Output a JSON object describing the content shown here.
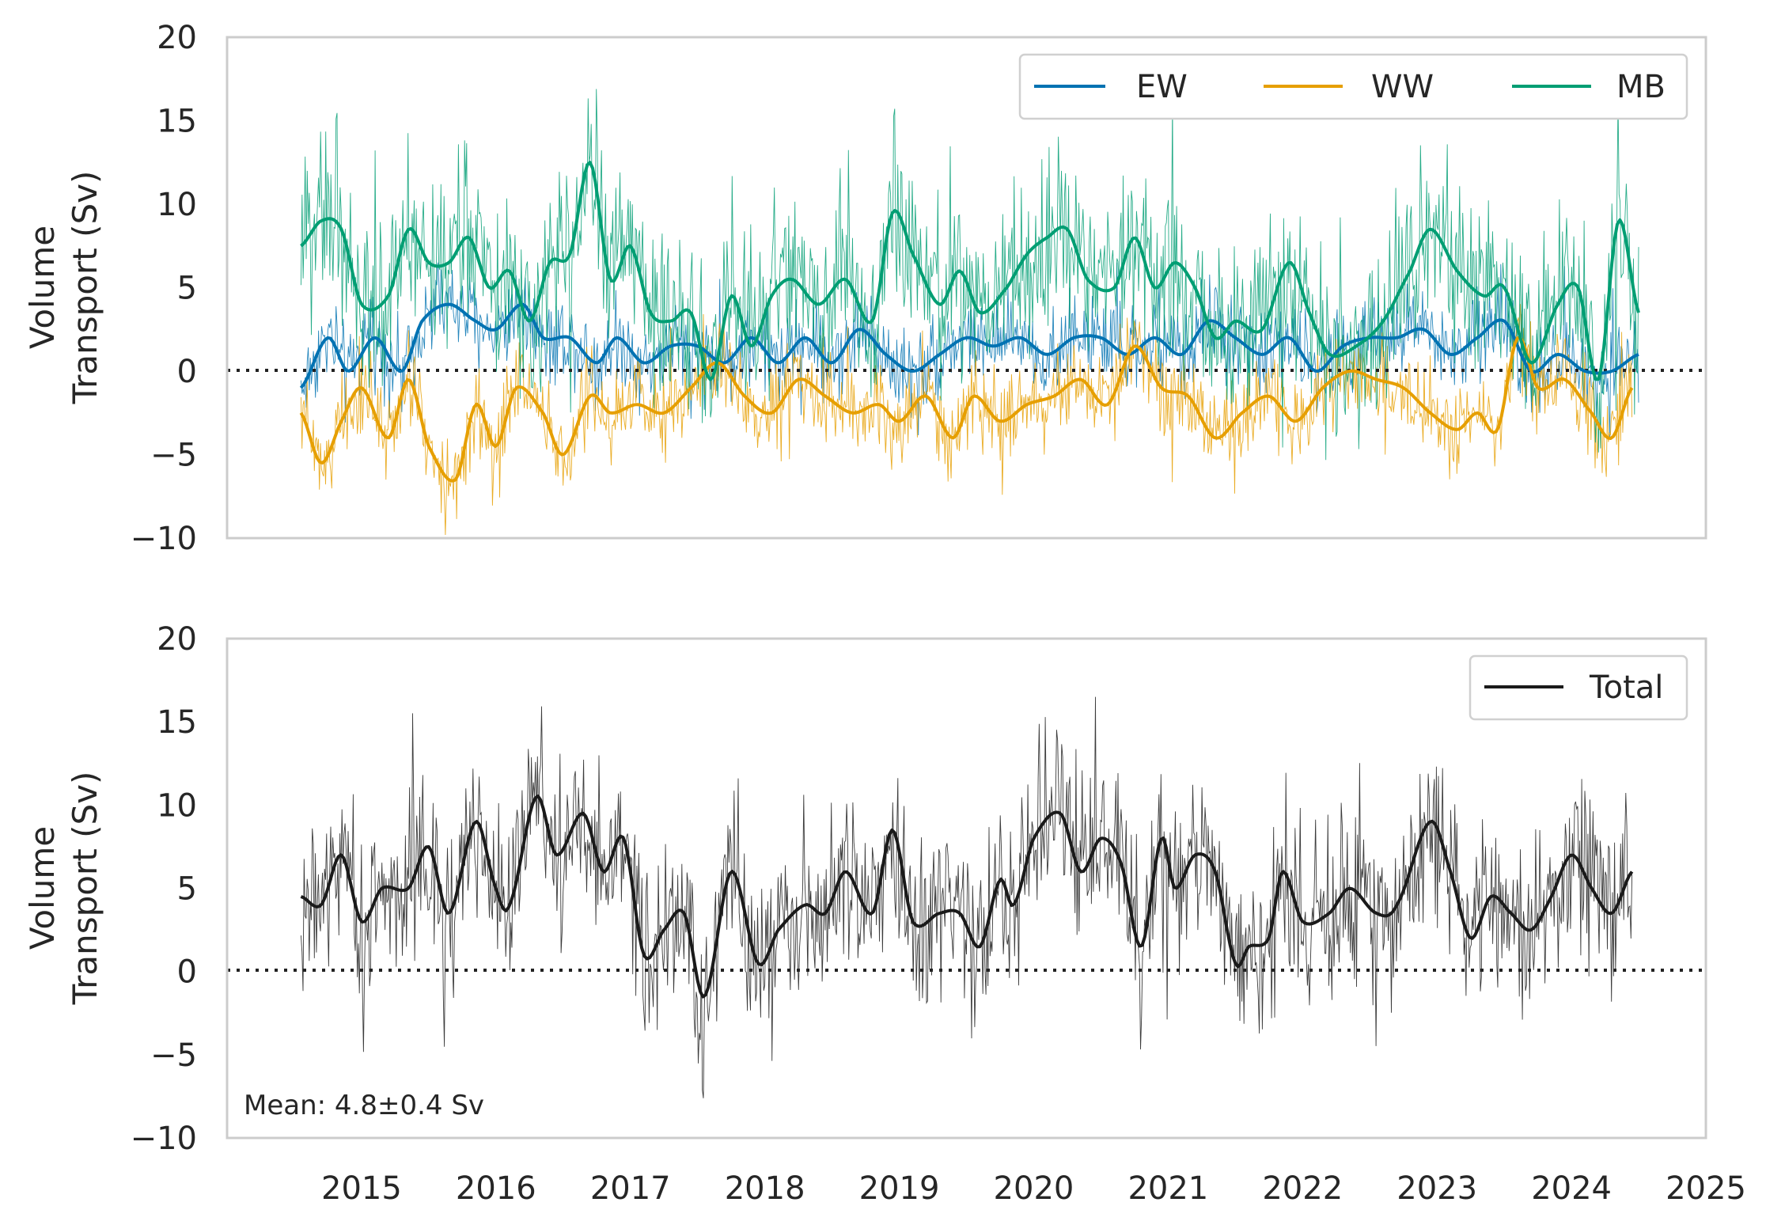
{
  "chart_data": [
    {
      "type": "line",
      "ylabel": [
        "Volume",
        "Transport (Sv)"
      ],
      "ylim": [
        -10,
        20
      ],
      "xlim": [
        2014.0,
        2025.0
      ],
      "yticks": [
        "20",
        "15",
        "10",
        "5",
        "0",
        "−5",
        "−10"
      ],
      "grid": false,
      "reference_line": {
        "y": 0,
        "style": "dotted"
      },
      "legend": {
        "placement": "top-right",
        "ncol": 3
      },
      "series": [
        {
          "name": "EW",
          "color": "#0072b2",
          "x": [
            2014.55,
            2014.75,
            2014.9,
            2015.1,
            2015.3,
            2015.45,
            2015.65,
            2015.85,
            2016.0,
            2016.2,
            2016.35,
            2016.55,
            2016.75,
            2016.9,
            2017.1,
            2017.3,
            2017.5,
            2017.7,
            2017.9,
            2018.1,
            2018.3,
            2018.5,
            2018.7,
            2018.9,
            2019.1,
            2019.3,
            2019.5,
            2019.7,
            2019.9,
            2020.1,
            2020.3,
            2020.5,
            2020.7,
            2020.9,
            2021.1,
            2021.3,
            2021.5,
            2021.7,
            2021.9,
            2022.1,
            2022.3,
            2022.5,
            2022.7,
            2022.9,
            2023.1,
            2023.3,
            2023.5,
            2023.7,
            2023.9,
            2024.1,
            2024.3,
            2024.5
          ],
          "values": [
            -1.0,
            2.0,
            0.0,
            2.0,
            0.0,
            3.0,
            4.0,
            3.0,
            2.5,
            4.0,
            2.0,
            2.0,
            0.5,
            2.0,
            0.5,
            1.5,
            1.5,
            0.5,
            2.0,
            0.5,
            2.0,
            0.5,
            2.5,
            1.0,
            0.0,
            1.0,
            2.0,
            1.5,
            2.0,
            1.0,
            2.0,
            2.0,
            1.0,
            2.0,
            1.0,
            3.0,
            2.0,
            1.0,
            2.0,
            0.0,
            1.5,
            2.0,
            2.0,
            2.5,
            1.0,
            2.0,
            3.0,
            0.0,
            1.0,
            0.0,
            0.0,
            1.0
          ],
          "smoothed": true
        },
        {
          "name": "WW",
          "color": "#e69f00",
          "x": [
            2014.55,
            2014.7,
            2014.85,
            2015.0,
            2015.2,
            2015.35,
            2015.5,
            2015.7,
            2015.85,
            2016.0,
            2016.15,
            2016.35,
            2016.5,
            2016.7,
            2016.85,
            2017.05,
            2017.25,
            2017.45,
            2017.65,
            2017.85,
            2018.05,
            2018.25,
            2018.45,
            2018.65,
            2018.85,
            2019.0,
            2019.2,
            2019.4,
            2019.55,
            2019.75,
            2019.95,
            2020.15,
            2020.35,
            2020.55,
            2020.75,
            2020.95,
            2021.15,
            2021.35,
            2021.55,
            2021.75,
            2021.95,
            2022.15,
            2022.35,
            2022.55,
            2022.75,
            2022.95,
            2023.15,
            2023.3,
            2023.45,
            2023.6,
            2023.75,
            2023.95,
            2024.15,
            2024.3,
            2024.45
          ],
          "values": [
            -2.5,
            -5.5,
            -3.0,
            -1.0,
            -4.0,
            -0.5,
            -4.5,
            -6.5,
            -2.0,
            -4.5,
            -1.0,
            -2.5,
            -5.0,
            -1.5,
            -2.5,
            -2.0,
            -2.5,
            -1.0,
            0.5,
            -1.5,
            -2.5,
            -0.5,
            -1.5,
            -2.5,
            -2.0,
            -3.0,
            -1.5,
            -4.0,
            -1.5,
            -3.0,
            -2.0,
            -1.5,
            -0.5,
            -2.0,
            1.5,
            -1.0,
            -1.5,
            -4.0,
            -2.5,
            -1.5,
            -3.0,
            -1.0,
            0.0,
            -0.5,
            -1.0,
            -2.5,
            -3.5,
            -2.5,
            -3.5,
            2.0,
            -1.0,
            -0.5,
            -2.5,
            -4.0,
            -1.0
          ],
          "smoothed": true
        },
        {
          "name": "MB",
          "color": "#009e73",
          "x": [
            2014.55,
            2014.7,
            2014.85,
            2015.0,
            2015.2,
            2015.35,
            2015.5,
            2015.65,
            2015.8,
            2015.95,
            2016.1,
            2016.25,
            2016.4,
            2016.55,
            2016.7,
            2016.85,
            2017.0,
            2017.15,
            2017.3,
            2017.45,
            2017.6,
            2017.75,
            2017.9,
            2018.05,
            2018.2,
            2018.4,
            2018.6,
            2018.8,
            2018.95,
            2019.1,
            2019.3,
            2019.45,
            2019.6,
            2019.8,
            2019.95,
            2020.1,
            2020.25,
            2020.4,
            2020.6,
            2020.75,
            2020.9,
            2021.05,
            2021.2,
            2021.35,
            2021.5,
            2021.7,
            2021.9,
            2022.05,
            2022.2,
            2022.4,
            2022.6,
            2022.8,
            2022.95,
            2023.15,
            2023.35,
            2023.5,
            2023.7,
            2023.9,
            2024.05,
            2024.2,
            2024.35,
            2024.5
          ],
          "values": [
            7.5,
            9.0,
            8.5,
            4.0,
            4.5,
            8.5,
            6.5,
            6.5,
            8.0,
            5.0,
            6.0,
            3.0,
            6.5,
            7.0,
            12.5,
            5.5,
            7.5,
            3.5,
            3.0,
            3.5,
            -0.5,
            4.5,
            1.5,
            4.5,
            5.5,
            4.0,
            5.5,
            3.0,
            9.5,
            7.0,
            4.0,
            6.0,
            3.5,
            5.0,
            7.0,
            8.0,
            8.5,
            5.5,
            5.0,
            8.0,
            5.0,
            6.5,
            5.0,
            2.0,
            3.0,
            2.5,
            6.5,
            3.5,
            1.0,
            1.5,
            3.0,
            6.0,
            8.5,
            6.0,
            4.5,
            5.0,
            0.5,
            4.0,
            5.0,
            -0.5,
            9.0,
            3.5
          ],
          "smoothed": true
        }
      ]
    },
    {
      "type": "line",
      "ylabel": [
        "Volume",
        "Transport (Sv)"
      ],
      "ylim": [
        -10,
        20
      ],
      "xlim": [
        2014.0,
        2025.0
      ],
      "yticks": [
        "20",
        "15",
        "10",
        "5",
        "0",
        "−5",
        "−10"
      ],
      "xticks": [
        "2015",
        "2016",
        "2017",
        "2018",
        "2019",
        "2020",
        "2021",
        "2022",
        "2023",
        "2024",
        "2025"
      ],
      "grid": false,
      "reference_line": {
        "y": 0,
        "style": "dotted"
      },
      "legend": {
        "placement": "top-right",
        "ncol": 1
      },
      "annotation": "Mean: 4.8±0.4 Sv",
      "series": [
        {
          "name": "Total",
          "color": "#1a1a1a",
          "x": [
            2014.55,
            2014.7,
            2014.85,
            2015.0,
            2015.15,
            2015.35,
            2015.5,
            2015.65,
            2015.85,
            2016.0,
            2016.1,
            2016.3,
            2016.45,
            2016.65,
            2016.8,
            2016.95,
            2017.1,
            2017.25,
            2017.4,
            2017.55,
            2017.75,
            2017.95,
            2018.1,
            2018.3,
            2018.45,
            2018.6,
            2018.8,
            2018.95,
            2019.1,
            2019.3,
            2019.45,
            2019.6,
            2019.75,
            2019.85,
            2020.0,
            2020.2,
            2020.35,
            2020.5,
            2020.65,
            2020.8,
            2020.95,
            2021.05,
            2021.2,
            2021.35,
            2021.5,
            2021.6,
            2021.75,
            2021.85,
            2022.0,
            2022.2,
            2022.35,
            2022.55,
            2022.7,
            2022.95,
            2023.1,
            2023.25,
            2023.4,
            2023.55,
            2023.7,
            2023.85,
            2024.0,
            2024.15,
            2024.3,
            2024.45
          ],
          "values": [
            4.5,
            4.0,
            7.0,
            3.0,
            5.0,
            5.0,
            7.5,
            3.5,
            9.0,
            5.0,
            4.0,
            10.5,
            7.0,
            9.5,
            6.0,
            8.0,
            1.0,
            2.5,
            3.5,
            -1.5,
            6.0,
            0.5,
            2.5,
            4.0,
            3.5,
            6.0,
            3.5,
            8.5,
            3.0,
            3.5,
            3.5,
            1.5,
            5.5,
            4.0,
            8.0,
            9.5,
            6.0,
            8.0,
            6.5,
            1.5,
            8.0,
            5.0,
            7.0,
            6.0,
            0.5,
            1.5,
            2.0,
            6.0,
            3.0,
            3.5,
            5.0,
            3.5,
            4.0,
            9.0,
            6.0,
            2.0,
            4.5,
            3.5,
            2.5,
            4.5,
            7.0,
            5.0,
            3.5,
            6.0
          ]
        }
      ]
    }
  ]
}
